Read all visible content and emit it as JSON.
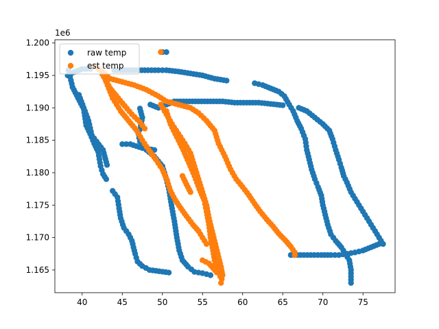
{
  "chart_data": {
    "type": "scatter",
    "title": "",
    "xlabel": "",
    "ylabel": "",
    "y_offset_text": "1e6",
    "xlim": [
      36.6,
      79.0
    ],
    "ylim": [
      1161500,
      1200500
    ],
    "x_ticks": [
      40,
      45,
      50,
      55,
      60,
      65,
      70,
      75
    ],
    "y_ticks": [
      1165000,
      1170000,
      1175000,
      1180000,
      1185000,
      1190000,
      1195000,
      1200000
    ],
    "y_tick_labels": [
      "1.165",
      "1.170",
      "1.175",
      "1.180",
      "1.185",
      "1.190",
      "1.195",
      "1.200"
    ],
    "grid": false,
    "legend_position": "upper-left",
    "series": [
      {
        "name": "raw temp",
        "color": "#1f77b4",
        "segments": [
          [
            [
              38.2,
              1195000
            ],
            [
              39.0,
              1195500
            ],
            [
              40.0,
              1196000
            ],
            [
              41.0,
              1196000
            ]
          ],
          [
            [
              38.3,
              1195800
            ],
            [
              38.8,
              1193200
            ],
            [
              39.5,
              1191500
            ],
            [
              40.2,
              1189800
            ],
            [
              40.5,
              1187300
            ],
            [
              41.0,
              1186000
            ],
            [
              41.5,
              1184500
            ],
            [
              42.0,
              1183200
            ],
            [
              42.3,
              1181000
            ],
            [
              42.6,
              1179800
            ],
            [
              43.0,
              1179000
            ]
          ],
          [
            [
              39.6,
              1192000
            ],
            [
              40.2,
              1190000
            ],
            [
              40.8,
              1188000
            ],
            [
              41.2,
              1185800
            ],
            [
              41.8,
              1184800
            ],
            [
              42.6,
              1183500
            ],
            [
              43.1,
              1181200
            ]
          ],
          [
            [
              43.8,
              1177200
            ],
            [
              44.4,
              1176200
            ],
            [
              44.6,
              1174500
            ],
            [
              44.8,
              1173000
            ],
            [
              45.2,
              1171500
            ],
            [
              45.8,
              1170500
            ],
            [
              46.2,
              1169500
            ],
            [
              46.6,
              1167500
            ],
            [
              46.9,
              1166300
            ],
            [
              47.5,
              1165600
            ],
            [
              48.4,
              1165000
            ],
            [
              49.6,
              1164800
            ],
            [
              50.8,
              1164600
            ]
          ],
          [
            [
              44.0,
              1195800
            ],
            [
              45.5,
              1195800
            ],
            [
              47.0,
              1195800
            ],
            [
              48.2,
              1195800
            ],
            [
              49.5,
              1195800
            ],
            [
              50.5,
              1195800
            ],
            [
              52.0,
              1195600
            ],
            [
              53.5,
              1195300
            ],
            [
              55.0,
              1195000
            ],
            [
              56.5,
              1194500
            ],
            [
              58.0,
              1194200
            ]
          ],
          [
            [
              47.2,
              1189900
            ],
            [
              47.5,
              1188500
            ],
            [
              47.3,
              1187200
            ],
            [
              47.0,
              1186000
            ],
            [
              47.2,
              1184800
            ],
            [
              48.0,
              1183500
            ],
            [
              49.0,
              1182500
            ],
            [
              50.0,
              1181000
            ],
            [
              50.5,
              1179000
            ],
            [
              50.8,
              1177500
            ],
            [
              51.0,
              1176000
            ],
            [
              51.2,
              1174500
            ],
            [
              51.5,
              1172500
            ],
            [
              51.8,
              1170000
            ],
            [
              52.1,
              1168000
            ],
            [
              52.5,
              1166500
            ],
            [
              53.2,
              1165500
            ],
            [
              54.0,
              1164700
            ],
            [
              55.0,
              1164500
            ],
            [
              56.0,
              1164200
            ]
          ],
          [
            [
              45.0,
              1184400
            ],
            [
              46.0,
              1184400
            ],
            [
              47.5,
              1183800
            ],
            [
              49.0,
              1183500
            ]
          ],
          [
            [
              48.5,
              1190500
            ],
            [
              49.5,
              1190000
            ],
            [
              50.5,
              1190500
            ],
            [
              51.5,
              1191000
            ],
            [
              53.0,
              1191000
            ],
            [
              54.5,
              1191000
            ],
            [
              56.0,
              1191000
            ],
            [
              57.5,
              1191000
            ],
            [
              59.0,
              1190800
            ],
            [
              60.5,
              1190800
            ],
            [
              62.0,
              1190800
            ],
            [
              63.5,
              1190600
            ],
            [
              65.0,
              1190400
            ]
          ],
          [
            [
              61.5,
              1193800
            ],
            [
              62.5,
              1193500
            ],
            [
              63.5,
              1193000
            ],
            [
              64.5,
              1192500
            ],
            [
              65.2,
              1191800
            ],
            [
              65.8,
              1190500
            ],
            [
              66.3,
              1189500
            ],
            [
              66.8,
              1188000
            ],
            [
              67.3,
              1186800
            ],
            [
              67.8,
              1185200
            ],
            [
              68.0,
              1183500
            ],
            [
              68.3,
              1182000
            ],
            [
              68.6,
              1180500
            ],
            [
              69.0,
              1179000
            ],
            [
              69.4,
              1177800
            ],
            [
              69.8,
              1176500
            ],
            [
              70.0,
              1175000
            ],
            [
              70.3,
              1173500
            ],
            [
              70.6,
              1172000
            ],
            [
              71.0,
              1170500
            ],
            [
              71.6,
              1169500
            ],
            [
              72.3,
              1168500
            ],
            [
              72.8,
              1167500
            ],
            [
              73.3,
              1166500
            ],
            [
              73.5,
              1165000
            ],
            [
              73.5,
              1163000
            ]
          ],
          [
            [
              67.0,
              1190000
            ],
            [
              68.0,
              1189500
            ],
            [
              69.0,
              1188500
            ],
            [
              70.0,
              1187500
            ],
            [
              70.8,
              1186500
            ],
            [
              71.2,
              1185200
            ],
            [
              71.6,
              1183500
            ],
            [
              72.0,
              1182000
            ],
            [
              72.3,
              1180800
            ],
            [
              72.6,
              1179500
            ],
            [
              73.0,
              1178500
            ],
            [
              73.5,
              1177000
            ],
            [
              74.0,
              1176000
            ],
            [
              74.5,
              1175000
            ],
            [
              75.0,
              1174000
            ],
            [
              75.5,
              1173000
            ],
            [
              76.0,
              1172000
            ],
            [
              76.5,
              1171000
            ],
            [
              77.0,
              1170000
            ],
            [
              77.5,
              1169000
            ]
          ],
          [
            [
              66.0,
              1167300
            ],
            [
              67.2,
              1167300
            ],
            [
              68.5,
              1167300
            ],
            [
              69.8,
              1167300
            ],
            [
              71.0,
              1167300
            ],
            [
              72.0,
              1167300
            ],
            [
              73.0,
              1167500
            ],
            [
              74.0,
              1167700
            ],
            [
              75.0,
              1168000
            ],
            [
              76.0,
              1168500
            ],
            [
              77.0,
              1169000
            ]
          ],
          [
            [
              50.0,
              1198600
            ],
            [
              50.5,
              1198600
            ]
          ]
        ]
      },
      {
        "name": "est temp",
        "color": "#ff7f0e",
        "segments": [
          [
            [
              41.5,
              1196500
            ],
            [
              42.5,
              1195600
            ],
            [
              43.5,
              1194500
            ],
            [
              45.0,
              1194000
            ],
            [
              46.5,
              1193500
            ],
            [
              48.0,
              1192800
            ],
            [
              49.5,
              1191800
            ],
            [
              50.5,
              1191000
            ],
            [
              52.0,
              1190500
            ],
            [
              53.5,
              1190000
            ],
            [
              54.5,
              1189200
            ],
            [
              55.5,
              1188000
            ],
            [
              56.5,
              1186500
            ],
            [
              57.0,
              1184500
            ],
            [
              57.8,
              1182500
            ],
            [
              58.5,
              1180500
            ],
            [
              59.2,
              1179000
            ],
            [
              60.0,
              1177800
            ],
            [
              60.8,
              1176500
            ],
            [
              61.5,
              1175200
            ],
            [
              62.2,
              1174000
            ],
            [
              63.0,
              1172800
            ],
            [
              63.8,
              1171700
            ],
            [
              64.5,
              1170600
            ],
            [
              65.3,
              1169600
            ],
            [
              66.0,
              1168600
            ],
            [
              66.5,
              1167700
            ],
            [
              66.5,
              1167300
            ]
          ],
          [
            [
              43.0,
              1194000
            ],
            [
              43.8,
              1191500
            ],
            [
              44.8,
              1189500
            ],
            [
              45.8,
              1188000
            ],
            [
              46.8,
              1186500
            ],
            [
              47.5,
              1185000
            ],
            [
              48.3,
              1183500
            ],
            [
              49.2,
              1182000
            ],
            [
              50.0,
              1180500
            ],
            [
              50.6,
              1178800
            ],
            [
              51.0,
              1177200
            ],
            [
              51.6,
              1175800
            ],
            [
              52.3,
              1174500
            ],
            [
              53.0,
              1173300
            ],
            [
              53.8,
              1172000
            ],
            [
              54.5,
              1171000
            ],
            [
              55.0,
              1170000
            ],
            [
              55.5,
              1169000
            ]
          ],
          [
            [
              42.5,
              1195200
            ],
            [
              43.5,
              1193000
            ],
            [
              44.5,
              1191500
            ],
            [
              45.3,
              1190300
            ],
            [
              46.2,
              1189000
            ],
            [
              47.2,
              1187800
            ],
            [
              47.8,
              1186800
            ]
          ],
          [
            [
              49.8,
              1190500
            ],
            [
              50.5,
              1189000
            ],
            [
              51.2,
              1187500
            ],
            [
              52.0,
              1186000
            ],
            [
              52.8,
              1184500
            ],
            [
              53.5,
              1183000
            ],
            [
              54.0,
              1181000
            ],
            [
              54.5,
              1179000
            ],
            [
              55.0,
              1177000
            ],
            [
              55.5,
              1175000
            ],
            [
              55.8,
              1173000
            ],
            [
              56.2,
              1171000
            ],
            [
              56.6,
              1169000
            ],
            [
              57.0,
              1167000
            ],
            [
              57.3,
              1165500
            ],
            [
              57.5,
              1164200
            ],
            [
              57.3,
              1163000
            ]
          ],
          [
            [
              50.5,
              1189500
            ],
            [
              51.0,
              1187500
            ],
            [
              51.8,
              1185500
            ],
            [
              52.6,
              1183500
            ],
            [
              53.3,
              1181500
            ],
            [
              54.0,
              1179500
            ],
            [
              54.6,
              1177500
            ],
            [
              55.2,
              1175800
            ],
            [
              55.5,
              1174000
            ],
            [
              55.8,
              1172000
            ],
            [
              56.0,
              1170000
            ],
            [
              56.3,
              1168000
            ],
            [
              56.5,
              1166500
            ],
            [
              56.8,
              1165000
            ]
          ],
          [
            [
              55.0,
              1166500
            ],
            [
              55.8,
              1166000
            ],
            [
              56.3,
              1165300
            ],
            [
              56.8,
              1164600
            ],
            [
              57.2,
              1164000
            ]
          ],
          [
            [
              52.5,
              1179500
            ],
            [
              53.0,
              1178200
            ],
            [
              53.5,
              1177000
            ]
          ],
          [
            [
              49.8,
              1198600
            ]
          ]
        ]
      }
    ]
  }
}
